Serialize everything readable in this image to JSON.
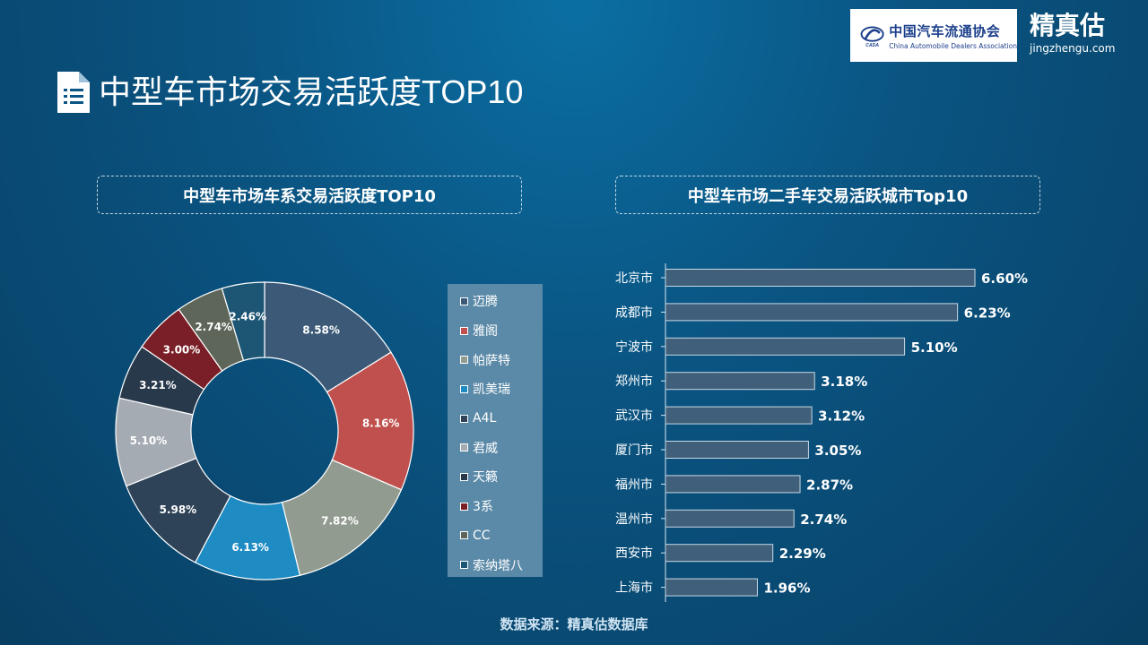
{
  "header": {
    "logo_cn": "中国汽车流通协会",
    "logo_en": "China Automobile Dealers Association",
    "logo_mark_text": "CADA",
    "brand_cn": "精真估",
    "brand_en": "jingzhengu.com",
    "page_title": "中型车市场交易活跃度TOP10",
    "title_icon": "document-list-icon"
  },
  "left_panel": {
    "subtitle": "中型车市场车系交易活跃度TOP10"
  },
  "right_panel": {
    "subtitle": "中型车市场二手车交易活跃城市Top10"
  },
  "footer": {
    "source": "数据来源：精真估数据库"
  },
  "chart_data": [
    {
      "type": "pie",
      "variant": "donut",
      "categories": [
        "迈腾",
        "雅阁",
        "帕萨特",
        "凯美瑞",
        "A4L",
        "君威",
        "天籁",
        "3系",
        "CC",
        "索纳塔八"
      ],
      "values": [
        8.58,
        8.16,
        7.82,
        6.13,
        5.98,
        5.1,
        3.21,
        3.0,
        2.74,
        2.46
      ],
      "data_labels": [
        "8.58%",
        "8.16%",
        "7.82%",
        "6.13%",
        "5.98%",
        "5.10%",
        "3.21%",
        "3.00%",
        "2.74%",
        "2.46%"
      ],
      "colors": [
        "#3c5a78",
        "#c0504d",
        "#929b90",
        "#1e8bc3",
        "#2f4358",
        "#a5abb3",
        "#28394c",
        "#7a1f27",
        "#5d6658",
        "#1d5674"
      ],
      "legend_position": "right"
    },
    {
      "type": "bar",
      "orientation": "horizontal",
      "categories": [
        "北京市",
        "成都市",
        "宁波市",
        "郑州市",
        "武汉市",
        "厦门市",
        "福州市",
        "温州市",
        "西安市",
        "上海市"
      ],
      "values": [
        6.6,
        6.23,
        5.1,
        3.18,
        3.12,
        3.05,
        2.87,
        2.74,
        2.29,
        1.96
      ],
      "data_labels": [
        "6.60%",
        "6.23%",
        "5.10%",
        "3.18%",
        "3.12%",
        "3.05%",
        "2.87%",
        "2.74%",
        "2.29%",
        "1.96%"
      ],
      "bar_color": "#3f5f7a",
      "grid": false
    }
  ]
}
